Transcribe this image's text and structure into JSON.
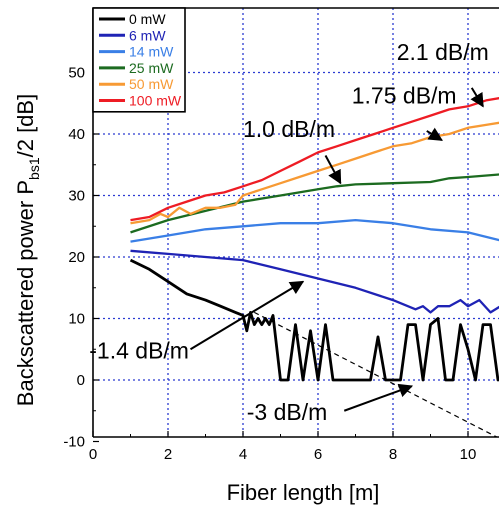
{
  "chart_data": {
    "type": "line",
    "xlabel": "Fiber length [m]",
    "ylabel": {
      "main": "Backscattered power  P",
      "sub": "bs1",
      "tail": "/2  [dB]"
    },
    "xlim": [
      0,
      11
    ],
    "ylim": [
      -10,
      60
    ],
    "xticks": [
      0,
      2,
      4,
      6,
      8,
      10
    ],
    "yticks": [
      -10,
      0,
      10,
      20,
      30,
      40,
      50
    ],
    "grid": true,
    "legend_position": "top-left",
    "series": [
      {
        "name": "0 mW",
        "color": "#000000",
        "x": [
          1.0,
          1.5,
          2.0,
          2.5,
          3.0,
          3.4,
          3.8,
          4.0,
          4.1,
          4.2,
          4.3,
          4.4,
          4.5,
          4.6,
          4.7,
          4.8,
          5.0,
          5.2,
          5.4,
          5.6,
          5.8,
          6.0,
          6.2,
          6.4,
          6.6,
          6.8,
          7.0,
          7.2,
          7.4,
          7.6,
          7.8,
          8.0,
          8.2,
          8.4,
          8.6,
          8.8,
          9.0,
          9.2,
          9.4,
          9.6,
          9.8,
          10.0,
          10.2,
          10.4,
          10.6,
          10.8,
          11.0
        ],
        "y": [
          19.5,
          18,
          16,
          14,
          13,
          12,
          11,
          10.5,
          8,
          11,
          9,
          10,
          9,
          10,
          9,
          10.5,
          0,
          0,
          9,
          0,
          8,
          0,
          9,
          0,
          0,
          0,
          0,
          0,
          0,
          7,
          0,
          0,
          0,
          9,
          9,
          0,
          9,
          10,
          0,
          0,
          9,
          5,
          0,
          9,
          9,
          0,
          1
        ]
      },
      {
        "name": "6 mW",
        "color": "#1f23b5",
        "x": [
          1,
          2,
          3,
          4,
          5,
          6,
          7,
          8,
          8.6,
          8.8,
          9,
          9.2,
          9.5,
          9.8,
          10,
          10.3,
          10.6,
          11
        ],
        "y": [
          21,
          20.5,
          20,
          19.5,
          18,
          16.5,
          15,
          13,
          11.5,
          12,
          11,
          12,
          12,
          13,
          12,
          13,
          11,
          12.5
        ]
      },
      {
        "name": "14 mW",
        "color": "#3a7fe6",
        "x": [
          1,
          2,
          3,
          4,
          5,
          6,
          7,
          8,
          9,
          10,
          11
        ],
        "y": [
          22.5,
          23.5,
          24.5,
          25,
          25.5,
          25.5,
          26,
          25.5,
          24.5,
          24,
          22.5
        ]
      },
      {
        "name": "25 mW",
        "color": "#1c6b20",
        "x": [
          1,
          2,
          3,
          4,
          5,
          6,
          6.5,
          7,
          8,
          9,
          9.5,
          10,
          11
        ],
        "y": [
          24,
          26,
          27.5,
          29,
          30,
          31,
          31.5,
          31.8,
          32,
          32.2,
          32.8,
          33,
          33.5
        ]
      },
      {
        "name": "50 mW",
        "color": "#f79a34",
        "x": [
          1,
          1.5,
          1.8,
          2,
          2.3,
          2.6,
          3,
          3.4,
          3.8,
          4,
          4.5,
          5,
          5.5,
          6,
          6.5,
          7,
          7.5,
          8,
          8.5,
          9,
          9.5,
          10,
          10.5,
          11
        ],
        "y": [
          25.5,
          26,
          27,
          26.5,
          28,
          27,
          28,
          28,
          28.5,
          30,
          31,
          32,
          33,
          34,
          35,
          36,
          37,
          38,
          38.5,
          39.5,
          40,
          41,
          41.5,
          42
        ]
      },
      {
        "name": "100 mW",
        "color": "#ee1c24",
        "x": [
          1,
          1.5,
          2,
          2.5,
          3,
          3.5,
          4,
          4.5,
          5,
          5.5,
          6,
          6.5,
          7,
          7.5,
          8,
          8.5,
          9,
          9.5,
          10,
          10.5,
          11
        ],
        "y": [
          26,
          26.5,
          28,
          29,
          30,
          30.5,
          31.5,
          32.5,
          34,
          35.5,
          37,
          38,
          39,
          40,
          41,
          42,
          43,
          44,
          44.5,
          45.5,
          46
        ]
      }
    ],
    "trend_lines": [
      {
        "x": [
          4.3,
          11
        ],
        "y": [
          11,
          -10
        ]
      }
    ],
    "annotations": [
      {
        "text": "2.1 dB/m",
        "text_at": [
          8.1,
          52
        ],
        "arrow_from": [
          10.1,
          47.5
        ],
        "arrow_to": [
          10.4,
          44.5
        ]
      },
      {
        "text": "1.75 dB/m",
        "text_at": [
          6.9,
          45
        ],
        "arrow_from": [
          8.9,
          40.5
        ],
        "arrow_to": [
          9.3,
          39
        ]
      },
      {
        "text": "1.0 dB/m",
        "text_at": [
          4.0,
          39.5
        ],
        "arrow_from": [
          6.2,
          36.5
        ],
        "arrow_to": [
          6.6,
          32
        ]
      },
      {
        "text": "-1.4 dB/m",
        "text_at": [
          -0.1,
          3.5
        ],
        "arrow_from": [
          2.6,
          5
        ],
        "arrow_to": [
          5.6,
          16
        ]
      },
      {
        "text": "-3 dB/m",
        "text_at": [
          4.1,
          -6.5
        ],
        "arrow_from": [
          6.7,
          -5
        ],
        "arrow_to": [
          8.5,
          -1
        ]
      }
    ]
  }
}
